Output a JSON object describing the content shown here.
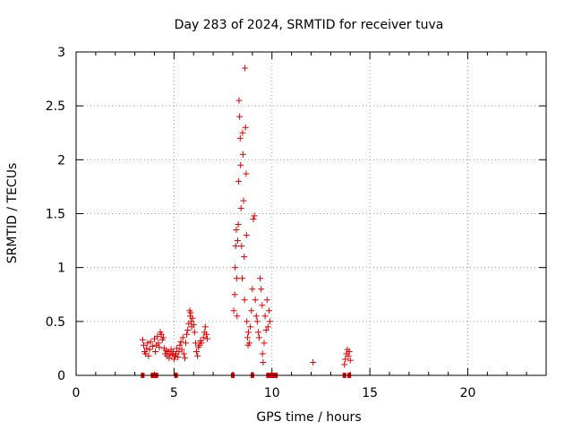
{
  "chart_data": {
    "type": "scatter",
    "title": "Day 283 of 2024, SRMTID for receiver tuva",
    "xlabel": "GPS time / hours",
    "ylabel": "SRMTID / TECUs",
    "xlim": [
      0,
      24
    ],
    "ylim": [
      0,
      3
    ],
    "xticks": [
      0,
      5,
      10,
      15,
      20
    ],
    "yticks": [
      0,
      0.5,
      1,
      1.5,
      2,
      2.5,
      3
    ],
    "ytick_labels": [
      "0",
      "0.5",
      "1",
      "1.5",
      "2",
      "2.5",
      "3"
    ],
    "grid": true,
    "marker": "+",
    "marker_color": "#e00000",
    "series": [
      {
        "name": "SRMTID",
        "points": [
          [
            3.4,
            0.33
          ],
          [
            3.45,
            0.28
          ],
          [
            3.5,
            0.22
          ],
          [
            3.55,
            0.2
          ],
          [
            3.6,
            0.25
          ],
          [
            3.65,
            0.3
          ],
          [
            3.7,
            0.18
          ],
          [
            3.75,
            0.24
          ],
          [
            3.8,
            0.31
          ],
          [
            3.9,
            0.27
          ],
          [
            4.0,
            0.34
          ],
          [
            4.05,
            0.22
          ],
          [
            4.1,
            0.28
          ],
          [
            4.15,
            0.36
          ],
          [
            4.2,
            0.3
          ],
          [
            4.25,
            0.26
          ],
          [
            4.3,
            0.4
          ],
          [
            4.35,
            0.38
          ],
          [
            4.4,
            0.33
          ],
          [
            4.45,
            0.35
          ],
          [
            4.5,
            0.25
          ],
          [
            4.55,
            0.2
          ],
          [
            4.6,
            0.23
          ],
          [
            4.65,
            0.18
          ],
          [
            4.7,
            0.22
          ],
          [
            4.75,
            0.16
          ],
          [
            4.8,
            0.2
          ],
          [
            4.85,
            0.24
          ],
          [
            4.9,
            0.19
          ],
          [
            4.95,
            0.22
          ],
          [
            5.0,
            0.15
          ],
          [
            5.05,
            0.18
          ],
          [
            5.1,
            0.2
          ],
          [
            5.15,
            0.25
          ],
          [
            5.2,
            0.17
          ],
          [
            5.25,
            0.22
          ],
          [
            5.3,
            0.28
          ],
          [
            5.35,
            0.31
          ],
          [
            5.4,
            0.24
          ],
          [
            5.45,
            0.35
          ],
          [
            5.5,
            0.2
          ],
          [
            5.55,
            0.16
          ],
          [
            5.6,
            0.3
          ],
          [
            5.65,
            0.38
          ],
          [
            5.7,
            0.42
          ],
          [
            5.75,
            0.48
          ],
          [
            5.8,
            0.6
          ],
          [
            5.82,
            0.55
          ],
          [
            5.85,
            0.58
          ],
          [
            5.88,
            0.5
          ],
          [
            5.9,
            0.45
          ],
          [
            5.95,
            0.53
          ],
          [
            6.0,
            0.47
          ],
          [
            6.05,
            0.4
          ],
          [
            6.1,
            0.3
          ],
          [
            6.15,
            0.22
          ],
          [
            6.2,
            0.18
          ],
          [
            6.25,
            0.26
          ],
          [
            6.3,
            0.28
          ],
          [
            6.35,
            0.32
          ],
          [
            6.4,
            0.3
          ],
          [
            6.5,
            0.35
          ],
          [
            6.55,
            0.4
          ],
          [
            6.6,
            0.45
          ],
          [
            6.65,
            0.38
          ],
          [
            6.7,
            0.34
          ],
          [
            8.05,
            0.6
          ],
          [
            8.1,
            0.75
          ],
          [
            8.12,
            1.0
          ],
          [
            8.15,
            1.2
          ],
          [
            8.18,
            1.35
          ],
          [
            8.2,
            0.9
          ],
          [
            8.22,
            0.55
          ],
          [
            8.25,
            1.25
          ],
          [
            8.28,
            1.4
          ],
          [
            8.3,
            1.8
          ],
          [
            8.32,
            2.55
          ],
          [
            8.35,
            2.4
          ],
          [
            8.38,
            2.2
          ],
          [
            8.4,
            1.95
          ],
          [
            8.42,
            1.55
          ],
          [
            8.45,
            1.2
          ],
          [
            8.48,
            0.9
          ],
          [
            8.5,
            2.25
          ],
          [
            8.52,
            2.05
          ],
          [
            8.55,
            1.62
          ],
          [
            8.58,
            1.1
          ],
          [
            8.6,
            0.7
          ],
          [
            8.62,
            2.85
          ],
          [
            8.65,
            2.3
          ],
          [
            8.68,
            1.87
          ],
          [
            8.7,
            1.3
          ],
          [
            8.72,
            0.5
          ],
          [
            8.75,
            0.35
          ],
          [
            8.78,
            0.28
          ],
          [
            8.8,
            0.4
          ],
          [
            8.85,
            0.3
          ],
          [
            8.9,
            0.45
          ],
          [
            8.95,
            0.6
          ],
          [
            9.0,
            0.8
          ],
          [
            9.05,
            1.45
          ],
          [
            9.1,
            1.48
          ],
          [
            9.15,
            0.7
          ],
          [
            9.2,
            0.55
          ],
          [
            9.25,
            0.5
          ],
          [
            9.3,
            0.4
          ],
          [
            9.35,
            0.35
          ],
          [
            9.4,
            0.9
          ],
          [
            9.45,
            0.8
          ],
          [
            9.5,
            0.65
          ],
          [
            9.52,
            0.2
          ],
          [
            9.55,
            0.12
          ],
          [
            9.6,
            0.3
          ],
          [
            9.65,
            0.55
          ],
          [
            9.7,
            0.42
          ],
          [
            9.75,
            0.7
          ],
          [
            9.8,
            0.45
          ],
          [
            9.85,
            0.6
          ],
          [
            9.9,
            0.5
          ],
          [
            12.1,
            0.12
          ],
          [
            13.7,
            0.1
          ],
          [
            13.75,
            0.15
          ],
          [
            13.8,
            0.2
          ],
          [
            13.85,
            0.24
          ],
          [
            13.9,
            0.18
          ],
          [
            13.95,
            0.22
          ],
          [
            14.0,
            0.14
          ]
        ],
        "zero_points": [
          3.4,
          3.9,
          4.0,
          4.1,
          5.1,
          8.0,
          9.0,
          9.8,
          9.9,
          10.0,
          10.1,
          10.2,
          13.7,
          13.95
        ]
      }
    ]
  }
}
